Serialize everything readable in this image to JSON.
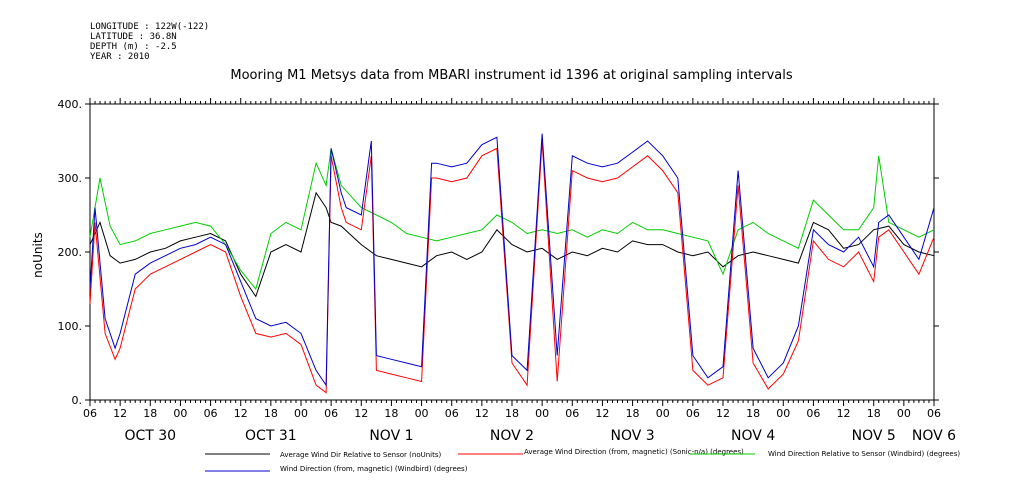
{
  "header": {
    "meta_lines": [
      "LONGITUDE : 122W(-122)",
      "LATITUDE : 36.8N",
      "DEPTH (m) : -2.5",
      "YEAR : 2010"
    ],
    "title": "Mooring M1 Metsys data from MBARI instrument id 1396 at original sampling intervals"
  },
  "chart_data": {
    "type": "line",
    "title": "Mooring M1 Metsys data from MBARI instrument id 1396 at original sampling intervals",
    "ylabel": "noUnits",
    "xlabel": "",
    "ylim": [
      0,
      400
    ],
    "y_ticks": [
      0,
      100,
      200,
      300,
      400
    ],
    "y_tick_labels": [
      "0.",
      "100.",
      "200.",
      "300.",
      "400."
    ],
    "x_axis": {
      "unit": "hour of day (2010)",
      "start": "Oct 30 06:00",
      "end": "Nov 6 06:00"
    },
    "x_tick_labels": [
      "06",
      "12",
      "18",
      "00",
      "06",
      "12",
      "18",
      "00",
      "06",
      "12",
      "18",
      "00",
      "06",
      "12",
      "18",
      "00",
      "06",
      "12",
      "18",
      "00",
      "06",
      "12",
      "18",
      "00",
      "06",
      "12",
      "18",
      "00",
      "06"
    ],
    "date_labels": [
      {
        "label": "OCT 30",
        "hour": 12
      },
      {
        "label": "OCT 31",
        "hour": 36
      },
      {
        "label": "NOV 1",
        "hour": 60
      },
      {
        "label": "NOV 2",
        "hour": 84
      },
      {
        "label": "NOV 3",
        "hour": 108
      },
      {
        "label": "NOV 4",
        "hour": 132
      },
      {
        "label": "NOV 5",
        "hour": 156
      },
      {
        "label": "NOV 6",
        "hour": 168
      }
    ],
    "grid": false,
    "legend_position": "bottom",
    "series": [
      {
        "name": "Average Wind Dir Relative to Sensor (noUnits)",
        "color": "#000000",
        "x": [
          0,
          2,
          4,
          6,
          9,
          12,
          15,
          18,
          21,
          24,
          27,
          30,
          33,
          36,
          39,
          42,
          45,
          47,
          48,
          50,
          54,
          57,
          60,
          63,
          66,
          69,
          72,
          75,
          78,
          81,
          84,
          87,
          90,
          93,
          96,
          99,
          102,
          105,
          108,
          111,
          114,
          117,
          120,
          123,
          126,
          129,
          132,
          135,
          138,
          141,
          144,
          147,
          150,
          153,
          156,
          159,
          162,
          165,
          168
        ],
        "values": [
          210,
          240,
          195,
          185,
          190,
          200,
          205,
          215,
          220,
          225,
          215,
          170,
          140,
          200,
          210,
          200,
          280,
          260,
          240,
          235,
          210,
          195,
          190,
          185,
          180,
          195,
          200,
          190,
          200,
          230,
          210,
          200,
          205,
          190,
          200,
          195,
          205,
          200,
          215,
          210,
          210,
          200,
          195,
          200,
          180,
          195,
          200,
          195,
          190,
          185,
          240,
          230,
          205,
          210,
          230,
          235,
          210,
          200,
          195
        ]
      },
      {
        "name": "Average Wind Direction (from, magnetic) (Sonic-n/a) (degrees)",
        "color": "#ff0000",
        "x": [
          0,
          1,
          3,
          5,
          6,
          9,
          12,
          15,
          18,
          21,
          24,
          27,
          30,
          33,
          36,
          39,
          42,
          45,
          47,
          48,
          50,
          51,
          54,
          56,
          57,
          60,
          63,
          66,
          68,
          69,
          72,
          75,
          78,
          81,
          84,
          87,
          90,
          93,
          96,
          99,
          102,
          105,
          108,
          111,
          114,
          117,
          120,
          123,
          126,
          129,
          132,
          135,
          138,
          141,
          144,
          147,
          150,
          153,
          156,
          157,
          159,
          162,
          165,
          168
        ],
        "values": [
          130,
          240,
          90,
          55,
          70,
          150,
          170,
          180,
          190,
          200,
          210,
          200,
          140,
          90,
          85,
          90,
          75,
          20,
          10,
          330,
          260,
          240,
          230,
          330,
          40,
          35,
          30,
          25,
          300,
          300,
          295,
          300,
          330,
          340,
          50,
          20,
          350,
          25,
          310,
          300,
          295,
          300,
          315,
          330,
          310,
          280,
          40,
          20,
          30,
          290,
          50,
          15,
          35,
          80,
          215,
          190,
          180,
          200,
          160,
          220,
          230,
          200,
          170,
          220
        ]
      },
      {
        "name": "Wind Direction Relative to Sensor (Windbird) (degrees)",
        "color": "#00cc00",
        "x": [
          0,
          2,
          4,
          6,
          9,
          12,
          15,
          18,
          21,
          24,
          27,
          30,
          33,
          36,
          39,
          42,
          45,
          47,
          48,
          50,
          54,
          57,
          60,
          63,
          66,
          69,
          72,
          75,
          78,
          81,
          84,
          87,
          90,
          93,
          96,
          99,
          102,
          105,
          108,
          111,
          114,
          117,
          120,
          123,
          126,
          129,
          132,
          135,
          138,
          141,
          144,
          147,
          150,
          153,
          156,
          157,
          159,
          162,
          165,
          168
        ],
        "values": [
          220,
          300,
          235,
          210,
          215,
          225,
          230,
          235,
          240,
          235,
          210,
          175,
          150,
          225,
          240,
          230,
          320,
          290,
          340,
          290,
          260,
          250,
          240,
          225,
          220,
          215,
          220,
          225,
          230,
          250,
          240,
          225,
          230,
          225,
          230,
          220,
          230,
          225,
          240,
          230,
          230,
          225,
          220,
          215,
          170,
          230,
          240,
          225,
          215,
          205,
          270,
          250,
          230,
          230,
          260,
          330,
          240,
          230,
          220,
          230
        ]
      },
      {
        "name": "Wind Direction (from, magnetic) (Windbird) (degrees)",
        "color": "#0000cc",
        "x": [
          0,
          1,
          3,
          5,
          6,
          9,
          12,
          15,
          18,
          21,
          24,
          27,
          30,
          33,
          36,
          39,
          42,
          45,
          47,
          48,
          50,
          51,
          54,
          56,
          57,
          60,
          63,
          66,
          68,
          69,
          72,
          75,
          78,
          81,
          84,
          87,
          90,
          93,
          96,
          99,
          102,
          105,
          108,
          111,
          114,
          117,
          120,
          123,
          126,
          129,
          132,
          135,
          138,
          141,
          144,
          147,
          150,
          153,
          156,
          157,
          159,
          162,
          165,
          168
        ],
        "values": [
          150,
          260,
          110,
          70,
          90,
          170,
          185,
          195,
          205,
          210,
          220,
          210,
          160,
          110,
          100,
          105,
          90,
          40,
          20,
          340,
          280,
          260,
          250,
          350,
          60,
          55,
          50,
          45,
          320,
          320,
          315,
          320,
          345,
          355,
          60,
          40,
          360,
          60,
          330,
          320,
          315,
          320,
          335,
          350,
          330,
          300,
          60,
          30,
          45,
          310,
          70,
          30,
          50,
          100,
          230,
          210,
          200,
          220,
          180,
          240,
          250,
          220,
          190,
          260
        ]
      }
    ]
  }
}
